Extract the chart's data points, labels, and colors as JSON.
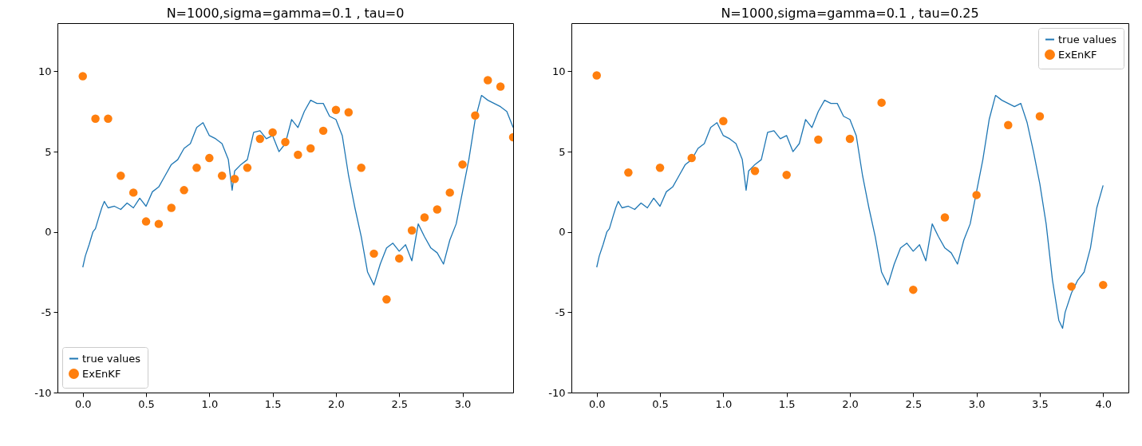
{
  "chart_data": [
    {
      "type": "line",
      "title": "N=1000,sigma=gamma=0.1 , tau=0",
      "legend": "bottom left",
      "grid": false,
      "xlim": [
        -0.2,
        3.4
      ],
      "ylim": [
        -10,
        13
      ],
      "xticks": [
        {
          "value": 0,
          "label": "0.0"
        },
        {
          "value": 0.5,
          "label": "0.5"
        },
        {
          "value": 1,
          "label": "1.0"
        },
        {
          "value": 1.5,
          "label": "1.5"
        },
        {
          "value": 2,
          "label": "2.0"
        },
        {
          "value": 2.5,
          "label": "2.5"
        },
        {
          "value": 3,
          "label": "3.0"
        }
      ],
      "yticks": [
        -10,
        -5,
        0,
        5,
        10
      ],
      "series": [
        {
          "name": "true values",
          "type": "line",
          "color": "#1f77b4",
          "x": [
            0,
            0.02,
            0.05,
            0.08,
            0.1,
            0.13,
            0.15,
            0.17,
            0.2,
            0.25,
            0.3,
            0.35,
            0.4,
            0.45,
            0.5,
            0.55,
            0.6,
            0.65,
            0.7,
            0.75,
            0.8,
            0.85,
            0.9,
            0.95,
            1,
            1.05,
            1.1,
            1.15,
            1.18,
            1.2,
            1.25,
            1.3,
            1.35,
            1.4,
            1.45,
            1.5,
            1.55,
            1.6,
            1.65,
            1.7,
            1.75,
            1.8,
            1.85,
            1.9,
            1.95,
            2,
            2.05,
            2.1,
            2.15,
            2.2,
            2.25,
            2.3,
            2.35,
            2.4,
            2.45,
            2.5,
            2.55,
            2.6,
            2.65,
            2.7,
            2.75,
            2.8,
            2.85,
            2.9,
            2.95,
            3,
            3.05,
            3.1,
            3.15,
            3.2,
            3.25,
            3.3,
            3.35,
            3.4
          ],
          "values": [
            -2.2,
            -1.5,
            -0.8,
            0,
            0.2,
            1,
            1.5,
            1.9,
            1.5,
            1.6,
            1.4,
            1.8,
            1.5,
            2.1,
            1.6,
            2.5,
            2.8,
            3.5,
            4.2,
            4.5,
            5.2,
            5.5,
            6.5,
            6.8,
            6,
            5.8,
            5.5,
            4.5,
            2.6,
            3.8,
            4.2,
            4.5,
            6.2,
            6.3,
            5.8,
            6,
            5,
            5.5,
            7,
            6.5,
            7.5,
            8.2,
            8,
            8,
            7.2,
            7,
            6,
            3.5,
            1.5,
            -0.3,
            -2.5,
            -3.3,
            -2,
            -1,
            -0.7,
            -1.2,
            -0.8,
            -1.8,
            0.5,
            -0.3,
            -1,
            -1.3,
            -2,
            -0.5,
            0.5,
            2.5,
            4.5,
            7,
            8.5,
            8.2,
            8,
            7.8,
            7.5,
            6.5
          ]
        },
        {
          "name": "ExEnKF",
          "type": "scatter",
          "marker": "circle",
          "color": "#ff7f0e",
          "x": [
            0,
            0.1,
            0.2,
            0.3,
            0.4,
            0.5,
            0.6,
            0.7,
            0.8,
            0.9,
            1,
            1.1,
            1.2,
            1.3,
            1.4,
            1.5,
            1.6,
            1.7,
            1.8,
            1.9,
            2,
            2.1,
            2.2,
            2.3,
            2.4,
            2.5,
            2.6,
            2.7,
            2.8,
            2.9,
            3,
            3.1,
            3.2,
            3.3,
            3.4
          ],
          "values": [
            9.7,
            7.05,
            7.05,
            3.5,
            2.45,
            0.65,
            0.5,
            1.5,
            2.6,
            4,
            4.6,
            3.5,
            3.3,
            4,
            5.8,
            6.2,
            5.6,
            4.8,
            5.2,
            6.3,
            7.6,
            7.45,
            4,
            -1.35,
            -4.2,
            -1.65,
            0.1,
            0.9,
            1.4,
            2.45,
            4.2,
            7.25,
            9.45,
            9.05,
            5.9
          ]
        }
      ]
    },
    {
      "type": "line",
      "title": "N=1000,sigma=gamma=0.1 , tau=0.25",
      "legend": "top right",
      "grid": false,
      "xlim": [
        -0.2,
        4.2
      ],
      "ylim": [
        -10,
        13
      ],
      "xticks": [
        {
          "value": 0,
          "label": "0.0"
        },
        {
          "value": 0.5,
          "label": "0.5"
        },
        {
          "value": 1,
          "label": "1.0"
        },
        {
          "value": 1.5,
          "label": "1.5"
        },
        {
          "value": 2,
          "label": "2.0"
        },
        {
          "value": 2.5,
          "label": "2.5"
        },
        {
          "value": 3,
          "label": "3.0"
        },
        {
          "value": 3.5,
          "label": "3.5"
        },
        {
          "value": 4,
          "label": "4.0"
        }
      ],
      "yticks": [
        -10,
        -5,
        0,
        5,
        10
      ],
      "series": [
        {
          "name": "true values",
          "type": "line",
          "color": "#1f77b4",
          "x": [
            0,
            0.02,
            0.05,
            0.08,
            0.1,
            0.13,
            0.15,
            0.17,
            0.2,
            0.25,
            0.3,
            0.35,
            0.4,
            0.45,
            0.5,
            0.55,
            0.6,
            0.65,
            0.7,
            0.75,
            0.8,
            0.85,
            0.9,
            0.95,
            1,
            1.05,
            1.1,
            1.15,
            1.18,
            1.2,
            1.25,
            1.3,
            1.35,
            1.4,
            1.45,
            1.5,
            1.55,
            1.6,
            1.65,
            1.7,
            1.75,
            1.8,
            1.85,
            1.9,
            1.95,
            2,
            2.05,
            2.1,
            2.15,
            2.2,
            2.25,
            2.3,
            2.35,
            2.4,
            2.45,
            2.5,
            2.55,
            2.6,
            2.65,
            2.7,
            2.75,
            2.8,
            2.85,
            2.9,
            2.95,
            3,
            3.05,
            3.1,
            3.15,
            3.2,
            3.25,
            3.3,
            3.35,
            3.4,
            3.45,
            3.5,
            3.55,
            3.6,
            3.65,
            3.68,
            3.7,
            3.75,
            3.8,
            3.85,
            3.9,
            3.95,
            4
          ],
          "values": [
            -2.2,
            -1.5,
            -0.8,
            0,
            0.2,
            1,
            1.5,
            1.9,
            1.5,
            1.6,
            1.4,
            1.8,
            1.5,
            2.1,
            1.6,
            2.5,
            2.8,
            3.5,
            4.2,
            4.5,
            5.2,
            5.5,
            6.5,
            6.8,
            6,
            5.8,
            5.5,
            4.5,
            2.6,
            3.8,
            4.2,
            4.5,
            6.2,
            6.3,
            5.8,
            6,
            5,
            5.5,
            7,
            6.5,
            7.5,
            8.2,
            8,
            8,
            7.2,
            7,
            6,
            3.5,
            1.5,
            -0.3,
            -2.5,
            -3.3,
            -2,
            -1,
            -0.7,
            -1.2,
            -0.8,
            -1.8,
            0.5,
            -0.3,
            -1,
            -1.3,
            -2,
            -0.5,
            0.5,
            2.5,
            4.5,
            7,
            8.5,
            8.2,
            8,
            7.8,
            8,
            6.8,
            5,
            3,
            0.5,
            -3,
            -5.5,
            -6,
            -5,
            -3.8,
            -3,
            -2.5,
            -1,
            1.5,
            2.9
          ]
        },
        {
          "name": "ExEnKF",
          "type": "scatter",
          "marker": "circle",
          "color": "#ff7f0e",
          "x": [
            0,
            0.25,
            0.5,
            0.75,
            1,
            1.25,
            1.5,
            1.75,
            2,
            2.25,
            2.5,
            2.75,
            3,
            3.25,
            3.5,
            3.75,
            4
          ],
          "values": [
            9.75,
            3.7,
            4,
            4.6,
            6.9,
            3.8,
            3.55,
            5.75,
            5.8,
            8.05,
            -3.6,
            0.9,
            2.3,
            6.65,
            7.2,
            -3.4,
            -3.3
          ]
        }
      ]
    }
  ]
}
